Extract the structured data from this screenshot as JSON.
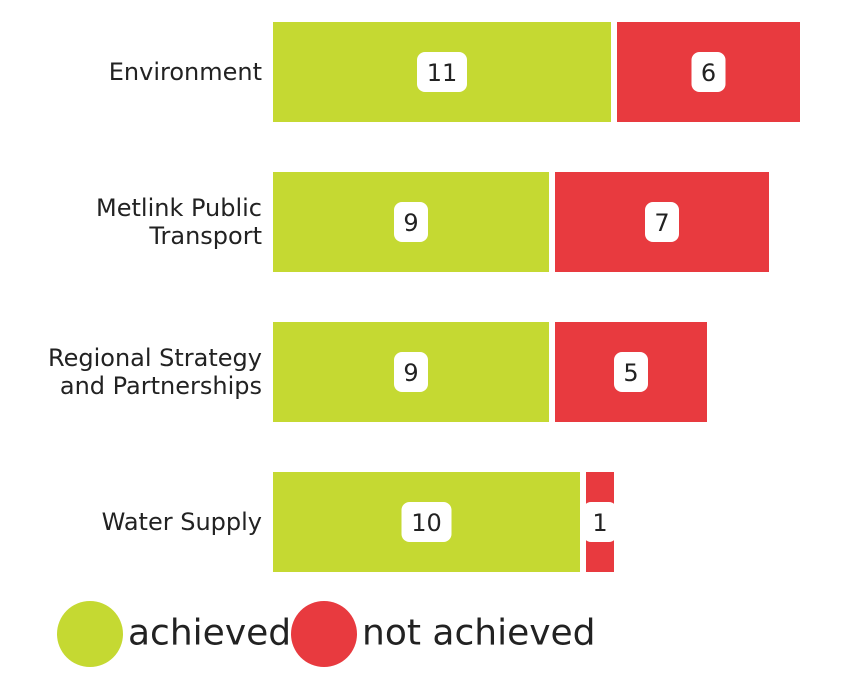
{
  "chart_data": {
    "type": "stacked-bar-horizontal",
    "categories": [
      "Environment",
      "Metlink Public\nTransport",
      "Regional Strategy\nand Partnerships",
      "Water Supply"
    ],
    "series": [
      {
        "name": "achieved",
        "color": "#c5d932",
        "values": [
          11,
          9,
          9,
          10
        ]
      },
      {
        "name": "not achieved",
        "color": "#e83a3f",
        "values": [
          6,
          7,
          5,
          1
        ]
      }
    ]
  }
}
